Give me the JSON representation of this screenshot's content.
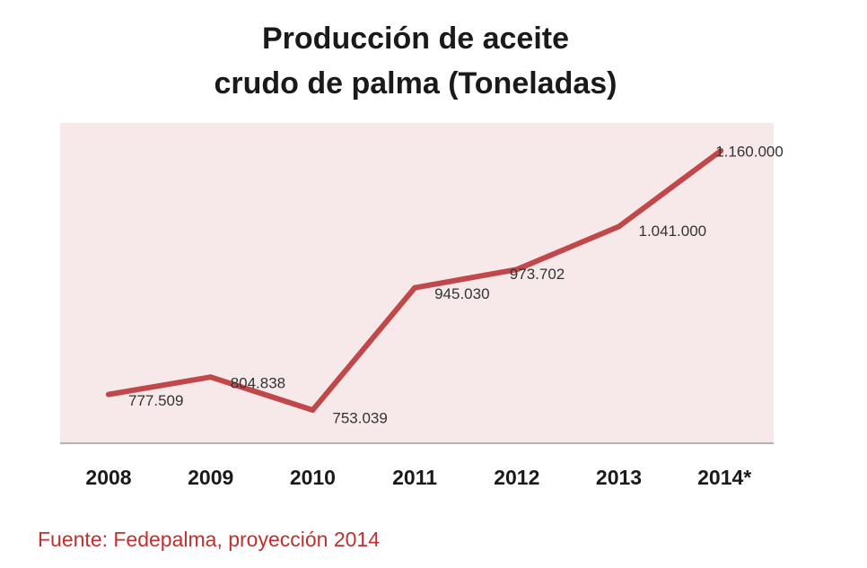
{
  "title_line1": "Producción de aceite",
  "title_line2": "crudo de palma (Toneladas)",
  "source": "Fuente:  Fedepalma, proyección 2014",
  "colors": {
    "line": "#c0474a",
    "plot_bg": "#f7e9ea",
    "axis": "#9e9e9e",
    "source": "#c0302e"
  },
  "chart_data": {
    "type": "line",
    "title": "Producción de aceite crudo de palma (Toneladas)",
    "categories": [
      "2008",
      "2009",
      "2010",
      "2011",
      "2012",
      "2013",
      "2014*"
    ],
    "series": [
      {
        "values": [
          777509,
          804838,
          753039,
          945030,
          973702,
          1041000,
          1160000
        ],
        "labels": [
          "777.509",
          "804.838",
          "753.039",
          "945.030",
          "973.702",
          "1.041.000",
          "1.160.000"
        ]
      }
    ],
    "ylim": [
      700000,
      1200000
    ],
    "grid": false,
    "legend": "none"
  }
}
